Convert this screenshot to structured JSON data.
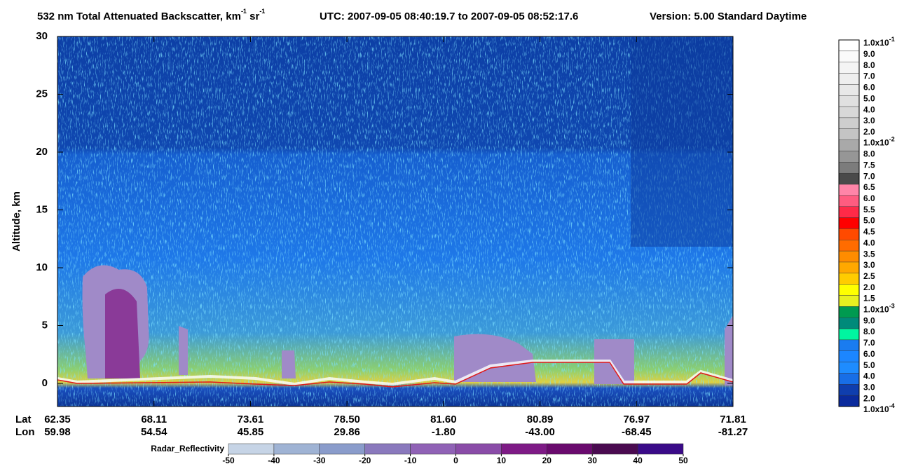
{
  "chart_data": {
    "type": "curtain",
    "title": [
      "532 nm Total Attenuated Backscatter, km",
      "-1",
      " sr",
      "-1",
      "UTC:  2007-09-05 08:40:19.7  to  2007-09-05 08:52:17.6",
      "Version: 5.00  Standard  Daytime"
    ],
    "y_label": "Altitude, km",
    "ylim": [
      -2,
      30
    ],
    "yticks": [
      0,
      5,
      10,
      15,
      20,
      25,
      30
    ],
    "x_rows": [
      {
        "name": "Lat",
        "labels": [
          "62.35",
          "68.11",
          "73.61",
          "78.50",
          "81.60",
          "80.89",
          "76.97",
          "71.81"
        ]
      },
      {
        "name": "Lon",
        "labels": [
          "59.98",
          "54.54",
          "45.85",
          "29.86",
          "-1.80",
          "-43.00",
          "-68.45",
          "-81.27"
        ]
      }
    ],
    "colorbar": {
      "labels": [
        {
          "text": "1.0x10",
          "sup": "-1"
        },
        "9.0",
        "8.0",
        "7.0",
        "6.0",
        "5.0",
        "4.0",
        "3.0",
        "2.0",
        {
          "text": "1.0x10",
          "sup": "-2"
        },
        "8.0",
        "7.5",
        "7.0",
        "6.5",
        "6.0",
        "5.5",
        "5.0",
        "4.5",
        "4.0",
        "3.5",
        "3.0",
        "2.5",
        "2.0",
        "1.5",
        {
          "text": "1.0x10",
          "sup": "-3"
        },
        "9.0",
        "8.0",
        "7.0",
        "6.0",
        "5.0",
        "4.0",
        "3.0",
        "2.0",
        {
          "text": "1.0x10",
          "sup": "-4"
        }
      ],
      "colors": [
        "#ffffff",
        "#fafafa",
        "#f4f4f4",
        "#eeeeee",
        "#e8e8e8",
        "#e0e0e0",
        "#d8d8d8",
        "#cecece",
        "#c4c4c4",
        "#a9a9a9",
        "#969696",
        "#7c7c7c",
        "#4a4a4a",
        "#ff85a8",
        "#ff5c80",
        "#ff2a48",
        "#ff0000",
        "#ff4a00",
        "#ff6c00",
        "#ff8c00",
        "#ffa800",
        "#ffcc00",
        "#ffff00",
        "#e8f020",
        "#009a50",
        "#008a7a",
        "#00f5a0",
        "#1a7cf0",
        "#1c86ff",
        "#1e8cff",
        "#186ee6",
        "#0f3eae",
        "#0a2a9c"
      ]
    },
    "radar": {
      "label": "Radar_Reflectivity",
      "lim": [
        -50,
        50
      ],
      "ticks": [
        -50,
        -40,
        -30,
        -20,
        -10,
        0,
        10,
        20,
        30,
        40,
        50
      ],
      "colors": [
        "#c6d4e6",
        "#9fb3d4",
        "#8a9ccb",
        "#8a79bd",
        "#9062b6",
        "#8a4ca8",
        "#7e1a86",
        "#6a0a6e",
        "#4a0a50",
        "#3a0a88"
      ]
    }
  }
}
